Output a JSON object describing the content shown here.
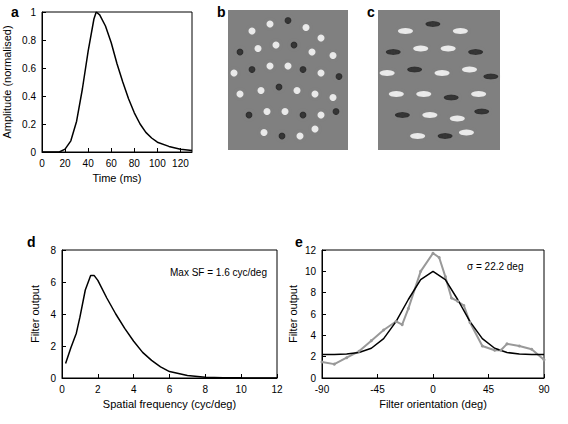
{
  "chart_data": [
    {
      "panel": "a",
      "type": "line",
      "x_label": "Time (ms)",
      "y_label": "Amplitude (normalised)",
      "xlim": [
        0,
        130
      ],
      "xticks": [
        0,
        20,
        40,
        60,
        80,
        100,
        120
      ],
      "ylim": [
        0,
        1
      ],
      "yticks": [
        0,
        0.2,
        0.4,
        0.6,
        0.8,
        1
      ],
      "grid": false,
      "series": [
        {
          "color": "#000000",
          "line_style": "solid",
          "x": [
            0,
            10,
            15,
            20,
            25,
            30,
            35,
            40,
            45,
            47,
            50,
            55,
            60,
            65,
            70,
            75,
            80,
            85,
            90,
            95,
            100,
            110,
            120,
            130
          ],
          "values": [
            0,
            0,
            0,
            0.02,
            0.08,
            0.22,
            0.45,
            0.72,
            0.95,
            1.0,
            0.98,
            0.9,
            0.78,
            0.63,
            0.5,
            0.38,
            0.28,
            0.2,
            0.14,
            0.1,
            0.07,
            0.04,
            0.02,
            0.01
          ]
        }
      ]
    },
    {
      "panel": "b",
      "type": "scatter",
      "tick_labels": false,
      "marker": "circle",
      "xlim": [
        -1,
        1
      ],
      "ylim": [
        -1,
        1
      ],
      "x": [
        -0.6,
        -0.3,
        0.0,
        0.3,
        0.55,
        -0.8,
        -0.5,
        -0.2,
        0.1,
        0.4,
        0.75,
        -0.9,
        -0.6,
        -0.3,
        0.0,
        0.25,
        0.55,
        0.85,
        -0.8,
        -0.45,
        -0.15,
        0.15,
        0.45,
        0.75,
        -0.65,
        -0.35,
        -0.05,
        0.25,
        0.55,
        0.8,
        -0.4,
        -0.1,
        0.2,
        0.45
      ],
      "values": [
        0.7,
        0.8,
        0.85,
        0.75,
        0.6,
        0.4,
        0.45,
        0.5,
        0.5,
        0.4,
        0.35,
        0.1,
        0.15,
        0.2,
        0.2,
        0.15,
        0.1,
        0.05,
        -0.2,
        -0.15,
        -0.1,
        -0.15,
        -0.2,
        -0.25,
        -0.5,
        -0.45,
        -0.45,
        -0.5,
        -0.5,
        -0.45,
        -0.75,
        -0.8,
        -0.8,
        -0.7
      ],
      "colors": [
        "#ffffff",
        "#ffffff",
        "#000000",
        "#ffffff",
        "#ffffff",
        "#000000",
        "#ffffff",
        "#ffffff",
        "#000000",
        "#ffffff",
        "#ffffff",
        "#ffffff",
        "#000000",
        "#ffffff",
        "#ffffff",
        "#000000",
        "#ffffff",
        "#000000",
        "#ffffff",
        "#ffffff",
        "#000000",
        "#ffffff",
        "#ffffff",
        "#ffffff",
        "#000000",
        "#ffffff",
        "#ffffff",
        "#000000",
        "#ffffff",
        "#000000",
        "#ffffff",
        "#000000",
        "#ffffff",
        "#ffffff"
      ]
    },
    {
      "panel": "c",
      "type": "scatter",
      "tick_labels": false,
      "marker": "ellipse",
      "xlim": [
        -1,
        1
      ],
      "ylim": [
        -1,
        1
      ],
      "x": [
        -0.55,
        -0.1,
        0.35,
        -0.75,
        -0.3,
        0.15,
        0.6,
        -0.85,
        -0.4,
        0.05,
        0.5,
        0.85,
        -0.7,
        -0.25,
        0.2,
        0.65,
        -0.6,
        -0.15,
        0.3,
        0.7,
        -0.35,
        0.1,
        0.45
      ],
      "values": [
        0.7,
        0.8,
        0.7,
        0.4,
        0.45,
        0.45,
        0.4,
        0.1,
        0.15,
        0.1,
        0.15,
        0.05,
        -0.2,
        -0.2,
        -0.25,
        -0.2,
        -0.5,
        -0.5,
        -0.55,
        -0.45,
        -0.8,
        -0.8,
        -0.75
      ],
      "colors": [
        "#ffffff",
        "#000000",
        "#ffffff",
        "#000000",
        "#ffffff",
        "#ffffff",
        "#000000",
        "#ffffff",
        "#000000",
        "#ffffff",
        "#ffffff",
        "#000000",
        "#ffffff",
        "#ffffff",
        "#000000",
        "#ffffff",
        "#000000",
        "#ffffff",
        "#ffffff",
        "#000000",
        "#ffffff",
        "#000000",
        "#ffffff"
      ]
    },
    {
      "panel": "d",
      "type": "line",
      "x_label": "Spatial frequency (cyc/deg)",
      "y_label": "Filter output",
      "annotations": [
        "Max SF = 1.6 cyc/deg"
      ],
      "xlim": [
        0,
        12
      ],
      "xticks": [
        0,
        2,
        4,
        6,
        8,
        10,
        12
      ],
      "ylim": [
        0,
        8
      ],
      "yticks": [
        0,
        2,
        4,
        6,
        8
      ],
      "grid": false,
      "series": [
        {
          "color": "#000000",
          "line_style": "solid",
          "x": [
            0.2,
            0.5,
            0.8,
            1.0,
            1.3,
            1.6,
            1.8,
            2.0,
            2.5,
            3.0,
            3.5,
            4.0,
            4.5,
            5.0,
            5.5,
            6.0,
            7.0,
            8.0,
            9.0,
            10.0,
            12.0
          ],
          "values": [
            0.9,
            1.9,
            2.8,
            3.8,
            5.5,
            6.4,
            6.4,
            6.1,
            5.0,
            4.0,
            3.1,
            2.3,
            1.6,
            1.1,
            0.7,
            0.4,
            0.15,
            0.05,
            0.02,
            0.01,
            0
          ]
        }
      ]
    },
    {
      "panel": "e",
      "type": "line",
      "x_label": "Filter orientation (deg)",
      "y_label": "Filter output",
      "annotations": [
        "σ = 22.2 deg"
      ],
      "xlim": [
        -90,
        90
      ],
      "xticks": [
        -90,
        -45,
        0,
        45,
        90
      ],
      "ylim": [
        0,
        12
      ],
      "yticks": [
        0,
        2,
        4,
        6,
        8,
        10,
        12
      ],
      "grid": false,
      "series": [
        {
          "color": "#999999",
          "line_style": "solid",
          "marker": "dot",
          "x": [
            -90,
            -80,
            -70,
            -60,
            -50,
            -40,
            -30,
            -25,
            -20,
            -10,
            0,
            5,
            10,
            15,
            20,
            25,
            30,
            40,
            50,
            55,
            60,
            70,
            80,
            90
          ],
          "values": [
            1.5,
            1.3,
            1.9,
            2.5,
            3.5,
            4.5,
            5.3,
            5.0,
            6.5,
            10,
            11.7,
            11.3,
            9.5,
            7.5,
            7.2,
            6.8,
            5.2,
            3.0,
            2.6,
            2.6,
            3.2,
            3.0,
            2.7,
            1.7
          ]
        },
        {
          "color": "#000000",
          "line_style": "solid",
          "x": [
            -90,
            -80,
            -70,
            -60,
            -50,
            -40,
            -30,
            -20,
            -10,
            0,
            10,
            20,
            30,
            40,
            50,
            60,
            70,
            80,
            90
          ],
          "values": [
            2.2,
            2.21,
            2.25,
            2.39,
            2.79,
            3.69,
            5.28,
            7.36,
            9.23,
            10,
            9.23,
            7.36,
            5.28,
            3.69,
            2.79,
            2.39,
            2.25,
            2.21,
            2.2
          ]
        }
      ]
    }
  ]
}
